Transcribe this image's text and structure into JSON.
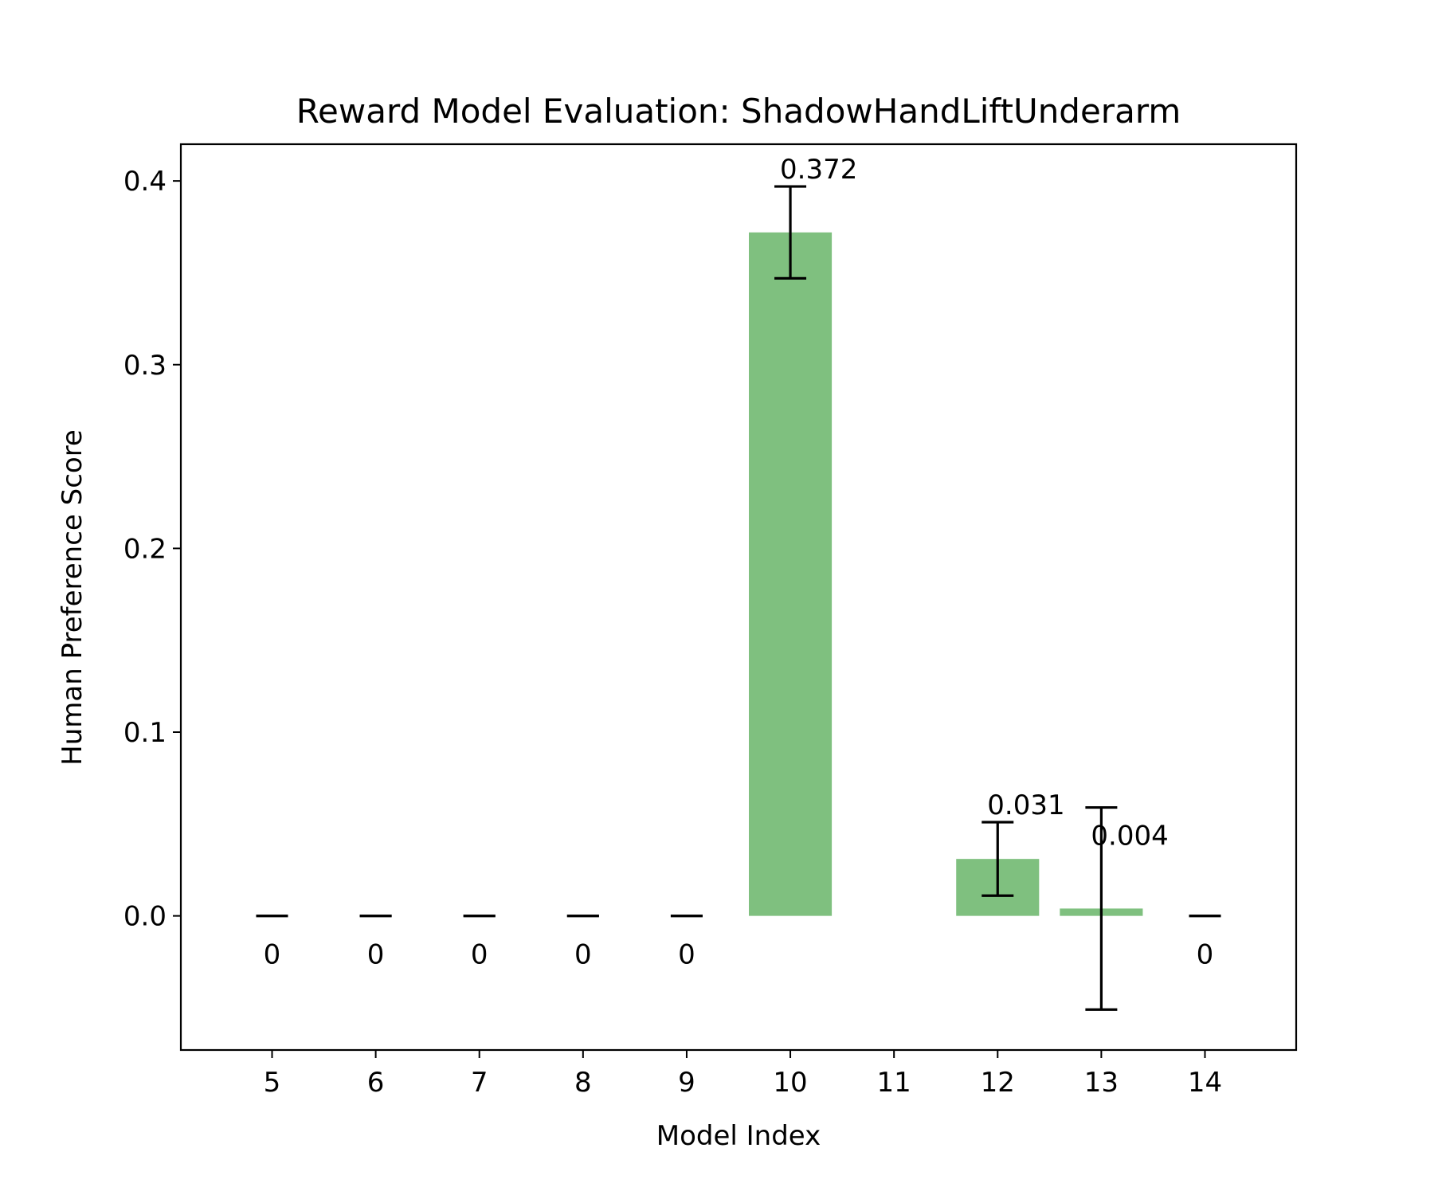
{
  "chart_data": {
    "type": "bar",
    "title": "Reward Model Evaluation: ShadowHandLiftUnderarm",
    "xlabel": "Model Index",
    "ylabel": "Human Preference Score",
    "categories": [
      "5",
      "6",
      "7",
      "8",
      "9",
      "10",
      "11",
      "12",
      "13",
      "14"
    ],
    "x": [
      5,
      6,
      7,
      8,
      9,
      10,
      11,
      12,
      13,
      14
    ],
    "values": [
      0,
      0,
      0,
      0,
      0,
      0.372,
      null,
      0.031,
      0.004,
      0
    ],
    "errors": [
      0,
      0,
      0,
      0,
      0,
      0.025,
      null,
      0.02,
      0.055,
      0
    ],
    "value_labels": [
      "0",
      "0",
      "0",
      "0",
      "0",
      "0.372",
      "",
      "0.031",
      "0.004",
      "0"
    ],
    "yticks": [
      0.0,
      0.1,
      0.2,
      0.3,
      0.4
    ],
    "ytick_labels": [
      "0.0",
      "0.1",
      "0.2",
      "0.3",
      "0.4"
    ],
    "xlim": [
      4.12,
      14.88
    ],
    "ylim": [
      -0.073,
      0.42
    ],
    "grid": false,
    "bar_color": "#7fc07f",
    "error_color": "#000000"
  }
}
